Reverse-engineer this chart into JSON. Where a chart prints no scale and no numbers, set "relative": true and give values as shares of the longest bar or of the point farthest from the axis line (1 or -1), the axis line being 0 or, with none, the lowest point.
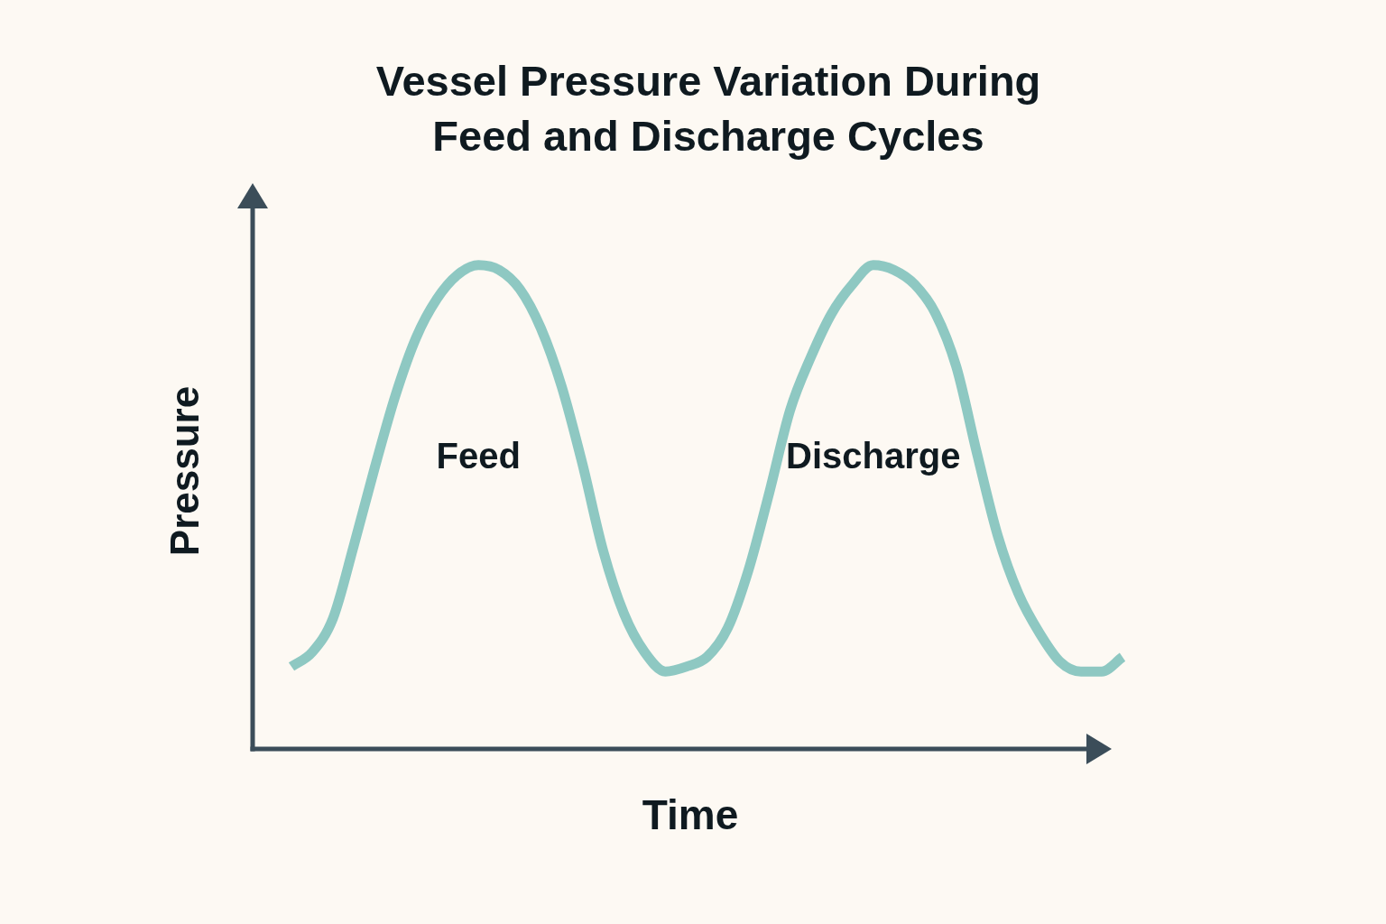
{
  "chart_data": {
    "type": "line",
    "title": "Vessel Pressure Variation During Feed and Discharge Cycles",
    "xlabel": "Time",
    "ylabel": "Pressure",
    "annotations": [
      "Feed",
      "Discharge"
    ],
    "relative": true,
    "categories": [
      null,
      null,
      null,
      null,
      null,
      null,
      null,
      null,
      null,
      null,
      null,
      null,
      null,
      null,
      null,
      null,
      null,
      null,
      null,
      null,
      null,
      null,
      null,
      null,
      null,
      null,
      null,
      null,
      null,
      null,
      null,
      null,
      null,
      null,
      null,
      null,
      null,
      null,
      null,
      null,
      null
    ],
    "color": "#8ec8c2",
    "values": [
      0.17,
      0.2,
      0.27,
      0.42,
      0.58,
      0.73,
      0.85,
      0.93,
      0.98,
      1.0,
      0.99,
      0.95,
      0.87,
      0.75,
      0.59,
      0.41,
      0.28,
      0.2,
      0.16,
      0.17,
      0.19,
      0.25,
      0.37,
      0.53,
      0.7,
      0.81,
      0.9,
      0.96,
      1.0,
      0.99,
      0.96,
      0.9,
      0.79,
      0.61,
      0.44,
      0.32,
      0.24,
      0.18,
      0.16,
      0.16,
      0.19
    ]
  }
}
